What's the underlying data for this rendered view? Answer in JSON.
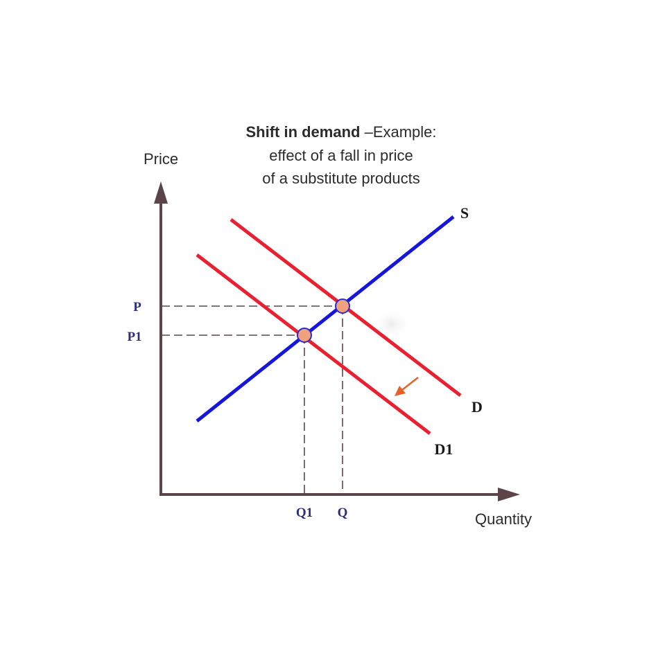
{
  "title": {
    "bold": "Shift in demand",
    "rest": " –Example:",
    "line2": "effect of a fall in price",
    "line3": "of a substitute products"
  },
  "axes": {
    "y_label": "Price",
    "x_label": "Quantity"
  },
  "curves": {
    "supply": "S",
    "demand": "D",
    "demand_new": "D1"
  },
  "ticks": {
    "p": "P",
    "p1": "P1",
    "q": "Q",
    "q1": "Q1"
  },
  "colors": {
    "axis": "#5b4548",
    "supply": "#1515e0",
    "demand": "#ea2030",
    "tick_text": "#2d2d7a",
    "point_fill": "#f0a27f",
    "point_stroke": "#2a2ad0",
    "guide": "#5b4548",
    "arrow": "#e8602a"
  }
}
